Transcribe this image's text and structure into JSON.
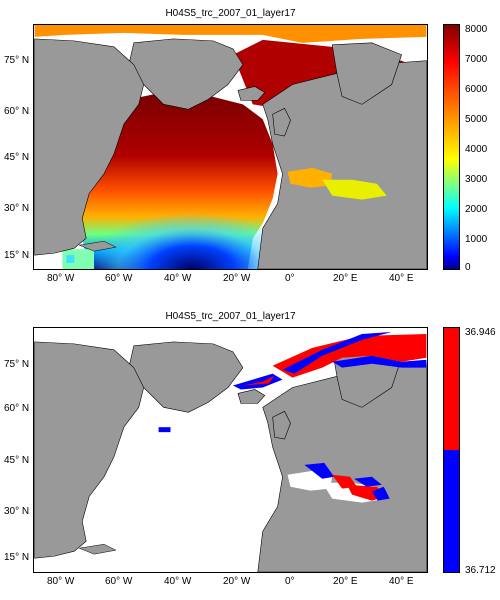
{
  "panels": [
    {
      "title": "H04S5_trc_2007_01_layer17",
      "lat_labels": [
        "75° N",
        "60° N",
        "45° N",
        "30° N",
        "15° N"
      ],
      "lon_labels": [
        "80° W",
        "60° W",
        "40° W",
        "20° W",
        "0°",
        "20° E",
        "40° E"
      ],
      "colorbar_ticks": [
        "8000",
        "7000",
        "6000",
        "5000",
        "4000",
        "3000",
        "2000",
        "1000",
        "0"
      ],
      "colorbar_range": [
        0,
        8000
      ],
      "colormap": "jet"
    },
    {
      "title": "H04S5_trc_2007_01_layer17",
      "lat_labels": [
        "75° N",
        "60° N",
        "45° N",
        "30° N",
        "15° N"
      ],
      "lon_labels": [
        "80° W",
        "60° W",
        "40° W",
        "20° W",
        "0°",
        "20° E",
        "40° E"
      ],
      "colorbar_ticks": [
        "36.946",
        "36.712"
      ],
      "colorbar_range": [
        36.712,
        36.946
      ],
      "colormap": "two-color"
    }
  ],
  "colors": {
    "land": "#999999",
    "ocean_nodata": "#ffffff",
    "high": "#ff0000",
    "low": "#0000ff"
  }
}
